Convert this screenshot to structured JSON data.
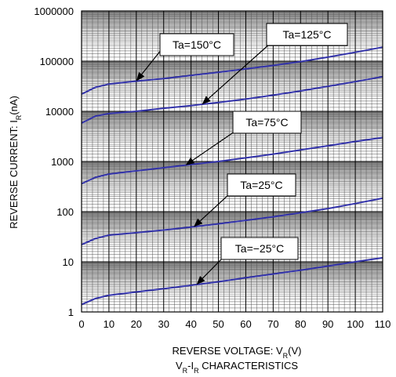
{
  "chart_data": {
    "type": "line",
    "title": "",
    "caption_main": "V",
    "caption_sub": "R",
    "caption_dash": "-I",
    "caption_sub2": "R",
    "caption_rest": " CHARACTERISTICS",
    "xlabel_main": "REVERSE VOLTAGE: V",
    "xlabel_sub": "R",
    "xlabel_unit": "(V)",
    "ylabel_main": "REVERSE CURRENT: I",
    "ylabel_sub": "R",
    "ylabel_unit": "(nA)",
    "x_scale": "linear",
    "y_scale": "log",
    "xlim": [
      0,
      110
    ],
    "ylim": [
      1,
      1000000
    ],
    "grid": true,
    "x_ticks": [
      "0",
      "10",
      "20",
      "30",
      "40",
      "50",
      "60",
      "70",
      "80",
      "90",
      "100",
      "110"
    ],
    "y_ticks": [
      "1",
      "10",
      "100",
      "1000",
      "10000",
      "100000",
      "1000000"
    ],
    "series": [
      {
        "name": "Ta=150°C",
        "color": "#3333aa",
        "x": [
          0,
          5,
          10,
          20,
          30,
          40,
          50,
          60,
          70,
          80,
          90,
          100,
          110
        ],
        "y": [
          22000,
          30000,
          35000,
          40000,
          45000,
          52000,
          60000,
          70000,
          82000,
          98000,
          120000,
          150000,
          190000
        ]
      },
      {
        "name": "Ta=125°C",
        "color": "#3333aa",
        "x": [
          0,
          5,
          10,
          20,
          30,
          40,
          50,
          60,
          70,
          80,
          90,
          100,
          110
        ],
        "y": [
          5800,
          8000,
          9000,
          10000,
          11500,
          13000,
          15000,
          17500,
          21000,
          25500,
          31500,
          39000,
          49000
        ]
      },
      {
        "name": "Ta=75°C",
        "color": "#3333aa",
        "x": [
          0,
          5,
          10,
          20,
          30,
          40,
          50,
          60,
          70,
          80,
          90,
          100,
          110
        ],
        "y": [
          360,
          480,
          560,
          650,
          750,
          870,
          1000,
          1180,
          1400,
          1700,
          2050,
          2500,
          3000
        ]
      },
      {
        "name": "Ta=25°C",
        "color": "#3333aa",
        "x": [
          0,
          5,
          10,
          20,
          30,
          40,
          50,
          60,
          70,
          80,
          90,
          100,
          110
        ],
        "y": [
          22,
          29,
          34,
          38,
          43,
          49,
          57,
          67,
          79,
          95,
          115,
          145,
          185
        ]
      },
      {
        "name": "Ta=−25°C",
        "color": "#3333aa",
        "x": [
          0,
          5,
          10,
          20,
          30,
          40,
          50,
          60,
          70,
          80,
          90,
          100,
          110
        ],
        "y": [
          1.4,
          1.85,
          2.15,
          2.5,
          2.9,
          3.4,
          4.0,
          4.8,
          5.7,
          6.8,
          8.2,
          10,
          12
        ]
      }
    ],
    "annotations": [
      {
        "text": "Ta=150°C",
        "series": 0,
        "arrow_x": 20
      },
      {
        "text": "Ta=125°C",
        "series": 1,
        "arrow_x": 44
      },
      {
        "text": "Ta=75°C",
        "series": 2,
        "arrow_x": 38
      },
      {
        "text": "Ta=25°C",
        "series": 3,
        "arrow_x": 41
      },
      {
        "text": "Ta=−25°C",
        "series": 4,
        "arrow_x": 42
      }
    ]
  }
}
